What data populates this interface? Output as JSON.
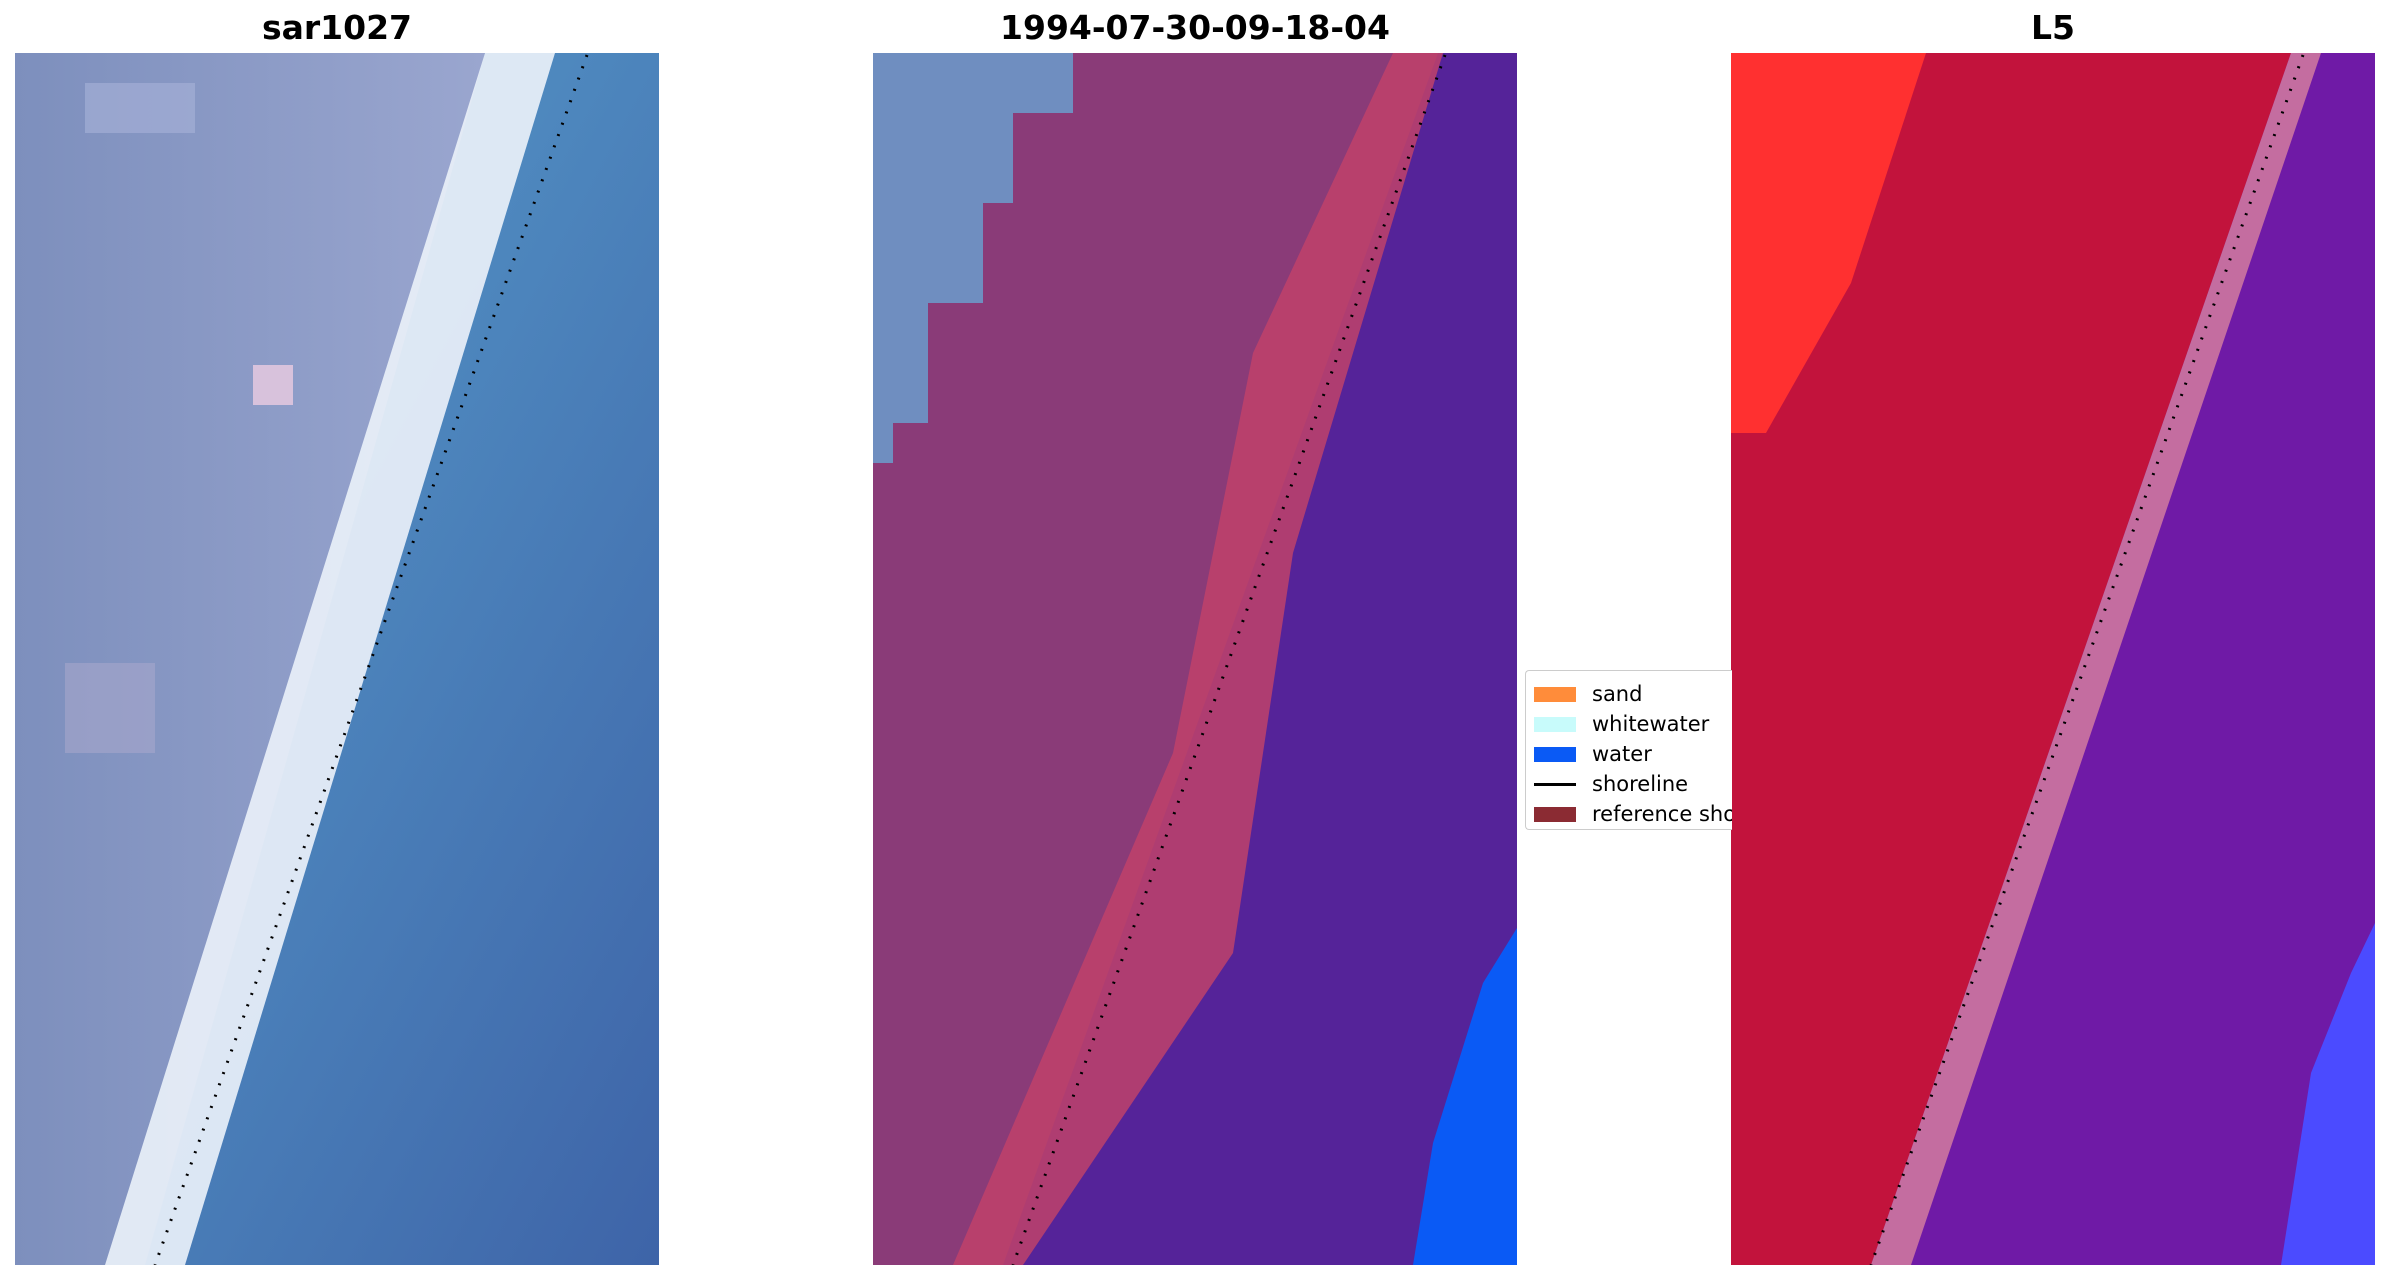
{
  "panels": [
    {
      "title": "sar1027",
      "layer": "true-color image"
    },
    {
      "title": "1994-07-30-09-18-04",
      "layer": "classified overlay"
    },
    {
      "title": "L5",
      "layer": "index map"
    }
  ],
  "legend": {
    "items": [
      {
        "label": "sand",
        "color": "#ff8c3a",
        "kind": "patch"
      },
      {
        "label": "whitewater",
        "color": "#c8fbfb",
        "kind": "patch"
      },
      {
        "label": "water",
        "color": "#0a5af5",
        "kind": "patch"
      },
      {
        "label": "shoreline",
        "color": "#000000",
        "kind": "line"
      },
      {
        "label": "reference shoreline",
        "color": "#8b2b33",
        "kind": "patch"
      }
    ]
  },
  "colors": {
    "land_image": "#8b9ac4",
    "sea_image": "#4a8ec4",
    "surf_image": "#e8eff8",
    "sand_overlay": "#8a3b78",
    "reference_band": "#c03c52",
    "water_overlay": "#552399",
    "water_class": "#0a5af5",
    "index_land": "#c2133c",
    "index_high": "#ff2222",
    "index_water": "#6f1aa6",
    "index_blue": "#4646ff"
  }
}
